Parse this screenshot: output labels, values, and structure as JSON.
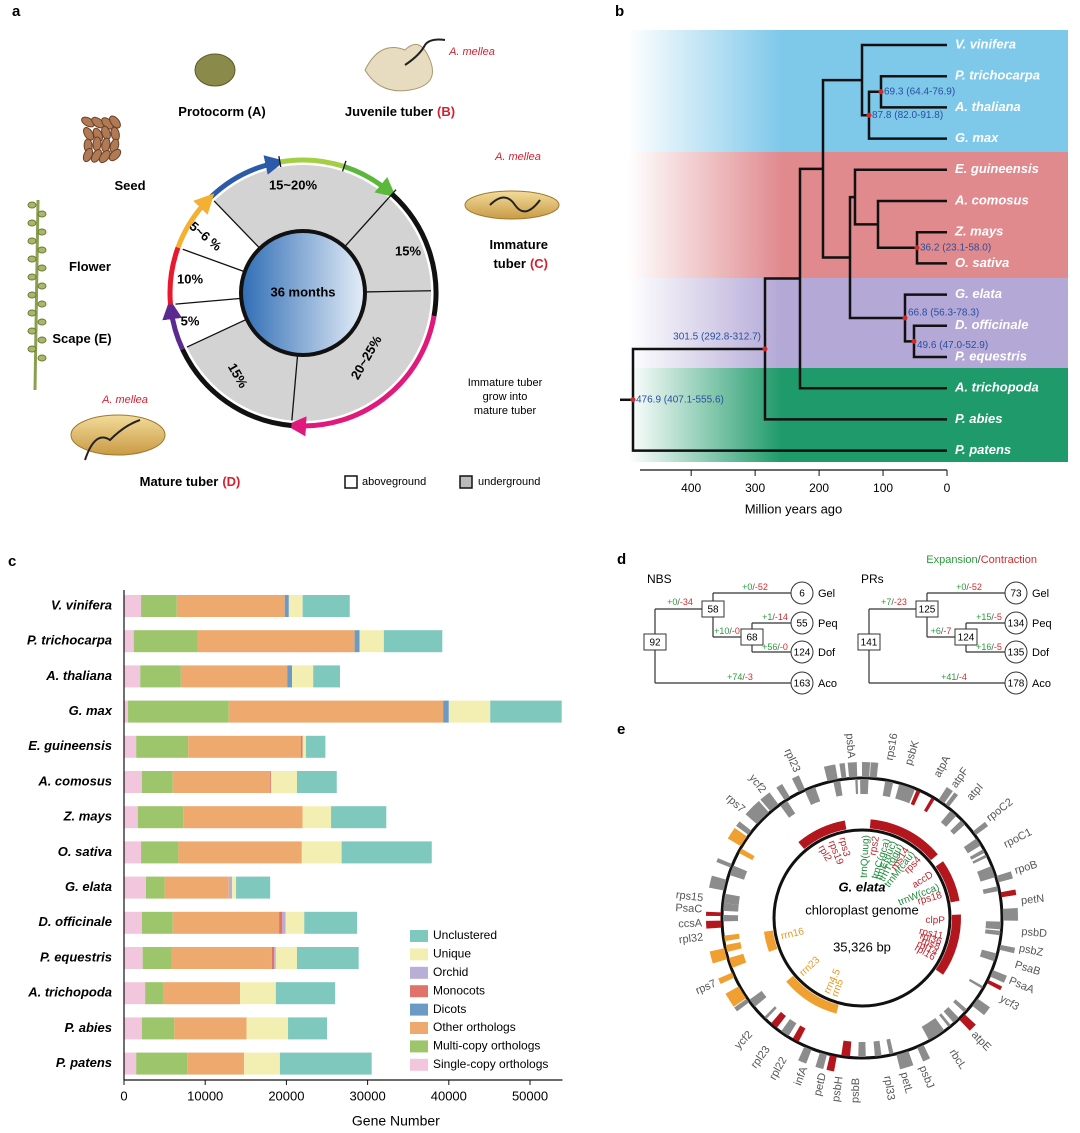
{
  "panel_labels": [
    "a",
    "b",
    "c",
    "d",
    "e"
  ],
  "life_cycle": {
    "stages": [
      {
        "lines": [
          "Protocorm (A)"
        ]
      },
      {
        "lines": [
          "Juvenile tuber"
        ],
        "code": "(B)"
      },
      {
        "lines": [
          "Seed"
        ]
      },
      {
        "lines": [
          "Flower"
        ]
      },
      {
        "lines": [
          "Scape (E)"
        ]
      },
      {
        "lines": [
          "Immature",
          "tuber"
        ],
        "code": "(C)"
      },
      {
        "lines": [
          "Mature tuber"
        ],
        "code": "(D)"
      }
    ],
    "pathogen": [
      "A. mellea",
      "A. mellea",
      "A. mellea"
    ],
    "percentages": [
      "15~20%",
      "15%",
      "20~25%",
      "15%",
      "5%",
      "10%",
      "5~6 %"
    ],
    "center": "36 months",
    "note": [
      "Immature tuber",
      "grow into",
      "mature tuber"
    ],
    "legend": [
      "aboveground",
      "underground"
    ]
  },
  "phylogeny": {
    "species": [
      "V. vinifera",
      "P. trichocarpa",
      "A. thaliana",
      "G. max",
      "E. guineensis",
      "A. comosus",
      "Z. mays",
      "O. sativa",
      "G. elata",
      "D. officinale",
      "P. equestris",
      "A. trichopoda",
      "P. abies",
      "P. patens"
    ],
    "node_labels": [
      "69.3 (64.4-76.9)",
      "87.8 (82.0-91.8)",
      "36.2 (23.1-58.0)",
      "66.8 (56.3-78.3)",
      "49.6 (47.0-52.9)",
      "301.5 (292.8-312.7)",
      "476.9 (407.1-555.6)"
    ],
    "band_colors": [
      "#7ec8ea",
      "#e08a8e",
      "#b3a8d6",
      "#1f9a6a"
    ],
    "xlim": [
      480,
      0
    ],
    "xticks": [
      400,
      300,
      200,
      100,
      0
    ],
    "xlabel": "Million years ago"
  },
  "chart_data": {
    "type": "bar",
    "orientation": "horizontal",
    "stacked": true,
    "categories": [
      "V. vinifera",
      "P. trichocarpa",
      "A. thaliana",
      "G. max",
      "E. guineensis",
      "A. comosus",
      "Z. mays",
      "O. sativa",
      "G. elata",
      "D. officinale",
      "P. equestris",
      "A. trichopoda",
      "P. abies",
      "P. patens"
    ],
    "series": [
      {
        "name": "Single-copy orthologs",
        "color": "#f2c6dc",
        "values": [
          2100,
          1200,
          2000,
          500,
          1500,
          2200,
          1700,
          2100,
          2700,
          2200,
          2300,
          2600,
          2200,
          1500
        ]
      },
      {
        "name": "Multi-copy orthologs",
        "color": "#9dc56b",
        "values": [
          4400,
          7900,
          5000,
          12400,
          6400,
          3800,
          5600,
          4600,
          2300,
          3800,
          3600,
          2200,
          4000,
          6300
        ]
      },
      {
        "name": "Other orthologs",
        "color": "#eeaa6e",
        "values": [
          13300,
          19300,
          13100,
          26400,
          13900,
          12000,
          14700,
          15200,
          7900,
          13100,
          12300,
          9500,
          8900,
          7000
        ]
      },
      {
        "name": "Dicots",
        "color": "#6b9ac4",
        "values": [
          500,
          600,
          600,
          700,
          0,
          0,
          0,
          0,
          0,
          0,
          0,
          0,
          0,
          0
        ]
      },
      {
        "name": "Monocots",
        "color": "#e0726a",
        "values": [
          0,
          0,
          0,
          0,
          200,
          100,
          0,
          0,
          0,
          400,
          300,
          0,
          0,
          0
        ]
      },
      {
        "name": "Orchid",
        "color": "#b9aed6",
        "values": [
          0,
          0,
          0,
          0,
          0,
          0,
          0,
          0,
          400,
          400,
          200,
          0,
          0,
          0
        ]
      },
      {
        "name": "Unique",
        "color": "#f3efb2",
        "values": [
          1700,
          3000,
          2600,
          5100,
          400,
          3200,
          3500,
          4900,
          500,
          2300,
          2600,
          4400,
          5100,
          4400
        ]
      },
      {
        "name": "Unclustered",
        "color": "#7ec8bd",
        "values": [
          5800,
          7200,
          3300,
          8800,
          2400,
          4900,
          6800,
          11100,
          4200,
          6500,
          7600,
          7300,
          4800,
          11300
        ]
      }
    ],
    "xlim": [
      0,
      54000
    ],
    "xticks": [
      0,
      10000,
      20000,
      30000,
      40000,
      50000
    ],
    "xlabel": "Gene Number",
    "legend": "lower-right"
  },
  "gene_family": {
    "legend": {
      "expansion": "Expansion",
      "separator": "/",
      "contraction": "Contraction"
    },
    "colors": {
      "expansion": "#2a9a3a",
      "contraction": "#d42a2a"
    },
    "trees": [
      {
        "title": "NBS",
        "internal": [
          92,
          58,
          68
        ],
        "leaves": [
          {
            "count": 6,
            "name": "Gel"
          },
          {
            "count": 55,
            "name": "Peq"
          },
          {
            "count": 124,
            "name": "Dof"
          },
          {
            "count": 163,
            "name": "Aco"
          }
        ],
        "changes": [
          [
            "+0",
            "-52"
          ],
          [
            "+0",
            "-34"
          ],
          [
            "+1",
            "-14"
          ],
          [
            "+10",
            "-0"
          ],
          [
            "+56",
            "-0"
          ],
          [
            "+74",
            "-3"
          ]
        ]
      },
      {
        "title": "PRs",
        "internal": [
          141,
          125,
          124
        ],
        "leaves": [
          {
            "count": 73,
            "name": "Gel"
          },
          {
            "count": 134,
            "name": "Peq"
          },
          {
            "count": 135,
            "name": "Dof"
          },
          {
            "count": 178,
            "name": "Aco"
          }
        ],
        "changes": [
          [
            "+0",
            "-52"
          ],
          [
            "+7",
            "-23"
          ],
          [
            "+15",
            "-5"
          ],
          [
            "+6",
            "-7"
          ],
          [
            "+16",
            "-5"
          ],
          [
            "+41",
            "-4"
          ]
        ]
      }
    ]
  },
  "chloroplast": {
    "title": "G. elata",
    "subtitle": "chloroplast genome",
    "size": "35,326 bp",
    "colors": {
      "protein": "#c0262d",
      "trna": "#1f8a3a",
      "rrna": "#e8961e"
    },
    "outer_genes": [
      "psbA",
      "rps16",
      "psbK",
      "atpA",
      "atpF",
      "atpI",
      "rpoC2",
      "rpoC1",
      "rpoB",
      "petN",
      "psbD",
      "psbZ",
      "PsaB",
      "PsaA",
      "ycf3",
      "atpE",
      "rbcL",
      "psbJ",
      "petL",
      "rpl33",
      "psbB",
      "psbH",
      "petD",
      "infA",
      "rpl22",
      "rpl23",
      "ycf2",
      "rps7",
      "rpl32",
      "ccsA",
      "PsaC",
      "rps15",
      "rps7",
      "ycf2",
      "rpl23"
    ],
    "inner_genes": [
      {
        "name": "rpl2",
        "kind": "protein"
      },
      {
        "name": "rps19",
        "kind": "protein"
      },
      {
        "name": "rps3",
        "kind": "protein"
      },
      {
        "name": "trnQ(uug)",
        "kind": "trna"
      },
      {
        "name": "rps2",
        "kind": "protein"
      },
      {
        "name": "trnC(gca)",
        "kind": "trna"
      },
      {
        "name": "trnE(uuc)",
        "kind": "trna"
      },
      {
        "name": "trnT(ggu)",
        "kind": "trna"
      },
      {
        "name": "rps14",
        "kind": "protein"
      },
      {
        "name": "trnM(cau)",
        "kind": "trna"
      },
      {
        "name": "rps4",
        "kind": "protein"
      },
      {
        "name": "accD",
        "kind": "protein"
      },
      {
        "name": "trnW(cca)",
        "kind": "trna"
      },
      {
        "name": "rps18",
        "kind": "protein"
      },
      {
        "name": "clpP",
        "kind": "protein"
      },
      {
        "name": "rps11",
        "kind": "protein"
      },
      {
        "name": "rpl36",
        "kind": "protein"
      },
      {
        "name": "rps8",
        "kind": "protein"
      },
      {
        "name": "rpl14",
        "kind": "protein"
      },
      {
        "name": "rpl16",
        "kind": "protein"
      },
      {
        "name": "rrn16",
        "kind": "rrna"
      },
      {
        "name": "rrn23",
        "kind": "rrna"
      },
      {
        "name": "rrn4.5",
        "kind": "rrna"
      },
      {
        "name": "rrn5",
        "kind": "rrna"
      }
    ]
  }
}
